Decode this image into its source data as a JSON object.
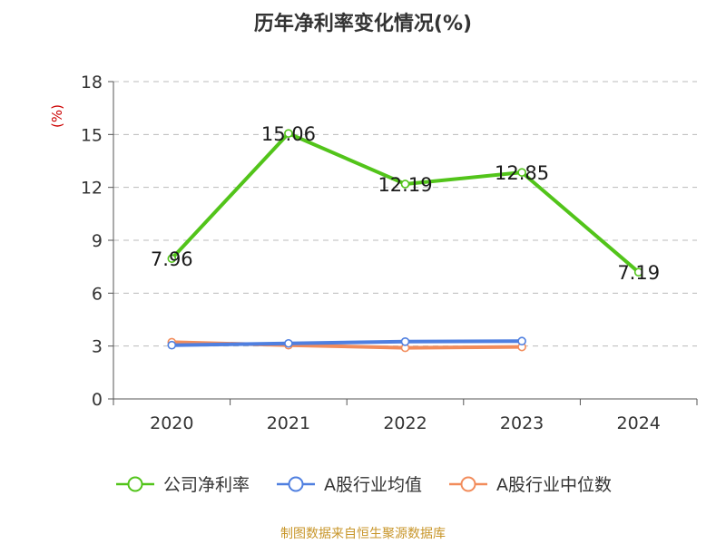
{
  "chart_data": {
    "type": "line",
    "title": "历年净利率变化情况(%)",
    "ylabel": "(%)",
    "xlabel": "",
    "categories": [
      "2020",
      "2021",
      "2022",
      "2023",
      "2024"
    ],
    "ylim": [
      0,
      18
    ],
    "yticks": [
      0,
      3,
      6,
      9,
      12,
      15,
      18
    ],
    "grid": true,
    "legend_position": "bottom",
    "series": [
      {
        "name": "公司净利率",
        "color": "#52c41a",
        "values": [
          7.96,
          15.06,
          12.19,
          12.85,
          7.19
        ],
        "show_labels": true
      },
      {
        "name": "A股行业均值",
        "color": "#4f7fe0",
        "values": [
          3.05,
          3.15,
          3.25,
          3.28,
          null
        ],
        "show_labels": false
      },
      {
        "name": "A股行业中位数",
        "color": "#f28c5b",
        "values": [
          3.22,
          3.05,
          2.9,
          2.95,
          null
        ],
        "show_labels": false
      }
    ]
  },
  "source_note": "制图数据来自恒生聚源数据库",
  "colors": {
    "title": "#333333",
    "axis": "#555555",
    "grid": "#bbbbbb",
    "ylabel": "#cc0000",
    "source_note": "#c8962a"
  }
}
